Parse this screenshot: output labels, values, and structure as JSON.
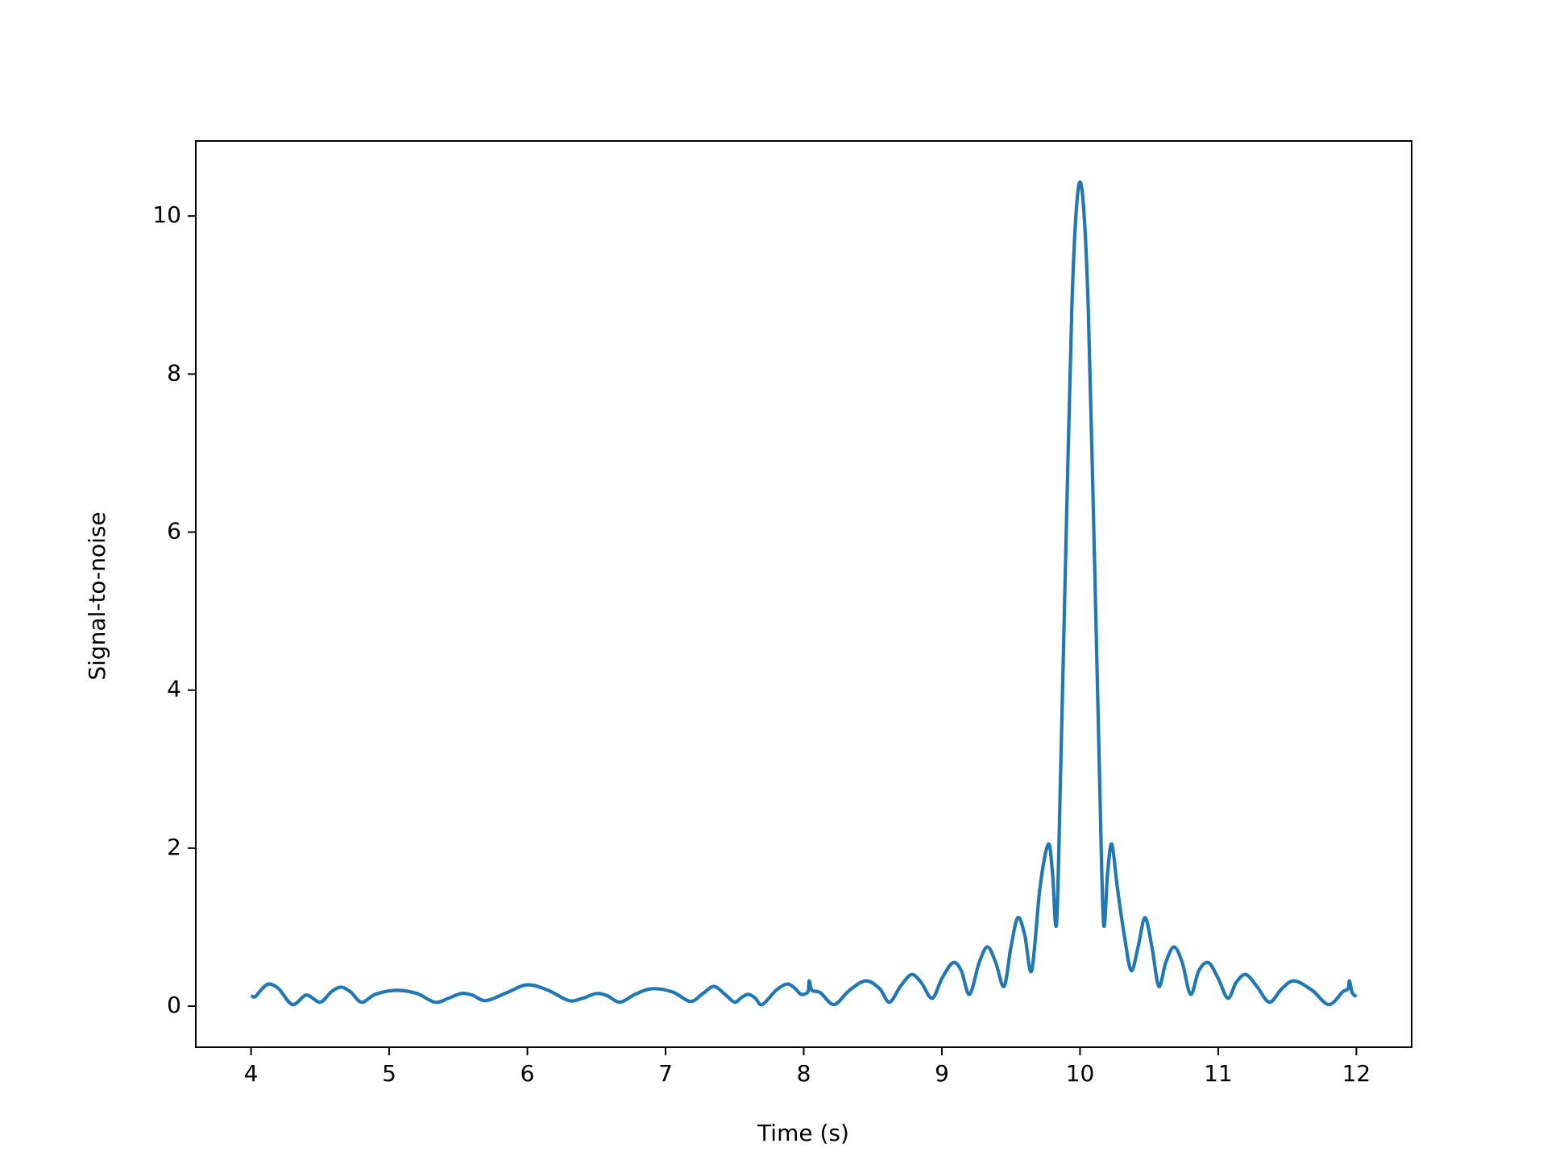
{
  "chart_data": {
    "type": "line",
    "xlabel": "Time (s)",
    "ylabel": "Signal-to-noise",
    "xlim": [
      3.6,
      12.4
    ],
    "ylim": [
      -0.52,
      10.95
    ],
    "xticks": [
      4,
      5,
      6,
      7,
      8,
      9,
      10,
      11,
      12
    ],
    "yticks": [
      0,
      2,
      4,
      6,
      8,
      10
    ],
    "grid": false,
    "x": [
      4.0,
      4.03,
      4.08,
      4.13,
      4.2,
      4.3,
      4.4,
      4.5,
      4.58,
      4.65,
      4.72,
      4.8,
      4.9,
      5.05,
      5.2,
      5.33,
      5.43,
      5.52,
      5.6,
      5.7,
      5.85,
      6.0,
      6.15,
      6.3,
      6.4,
      6.5,
      6.58,
      6.67,
      6.78,
      6.9,
      7.05,
      7.18,
      7.27,
      7.35,
      7.43,
      7.5,
      7.55,
      7.6,
      7.65,
      7.7,
      7.8,
      7.88,
      7.94,
      7.98,
      8.03,
      8.04,
      8.06,
      8.12,
      8.22,
      8.33,
      8.45,
      8.55,
      8.62,
      8.7,
      8.78,
      8.85,
      8.93,
      9.0,
      9.08,
      9.14,
      9.2,
      9.27,
      9.33,
      9.39,
      9.45,
      9.5,
      9.55,
      9.6,
      9.65,
      9.71,
      9.77,
      9.8,
      9.83,
      9.86,
      9.9,
      9.94,
      9.97,
      10.0,
      10.03,
      10.06,
      10.1,
      10.14,
      10.17,
      10.2,
      10.23,
      10.27,
      10.32,
      10.37,
      10.42,
      10.47,
      10.52,
      10.57,
      10.62,
      10.68,
      10.74,
      10.8,
      10.86,
      10.93,
      11.0,
      11.07,
      11.13,
      11.2,
      11.28,
      11.37,
      11.46,
      11.55,
      11.68,
      11.8,
      11.9,
      11.94,
      11.95,
      11.97,
      12.0
    ],
    "series": [
      {
        "color": "#1f77b4",
        "values": [
          0.13,
          0.12,
          0.22,
          0.28,
          0.22,
          0.02,
          0.14,
          0.05,
          0.18,
          0.24,
          0.18,
          0.05,
          0.15,
          0.2,
          0.16,
          0.05,
          0.1,
          0.16,
          0.14,
          0.07,
          0.17,
          0.27,
          0.2,
          0.07,
          0.1,
          0.16,
          0.13,
          0.05,
          0.15,
          0.22,
          0.18,
          0.06,
          0.16,
          0.25,
          0.15,
          0.05,
          0.11,
          0.15,
          0.1,
          0.02,
          0.2,
          0.28,
          0.22,
          0.15,
          0.18,
          0.32,
          0.2,
          0.17,
          0.02,
          0.2,
          0.32,
          0.22,
          0.05,
          0.25,
          0.4,
          0.3,
          0.1,
          0.35,
          0.55,
          0.45,
          0.15,
          0.55,
          0.75,
          0.55,
          0.25,
          0.75,
          1.12,
          0.9,
          0.45,
          1.5,
          2.05,
          1.7,
          1.05,
          3.0,
          6.0,
          8.8,
          10.0,
          10.43,
          10.0,
          8.8,
          6.0,
          3.0,
          1.05,
          1.7,
          2.05,
          1.5,
          0.9,
          0.45,
          0.75,
          1.12,
          0.75,
          0.25,
          0.55,
          0.75,
          0.55,
          0.15,
          0.45,
          0.55,
          0.35,
          0.1,
          0.3,
          0.4,
          0.25,
          0.05,
          0.22,
          0.32,
          0.2,
          0.02,
          0.18,
          0.22,
          0.32,
          0.17,
          0.12
        ]
      }
    ]
  }
}
